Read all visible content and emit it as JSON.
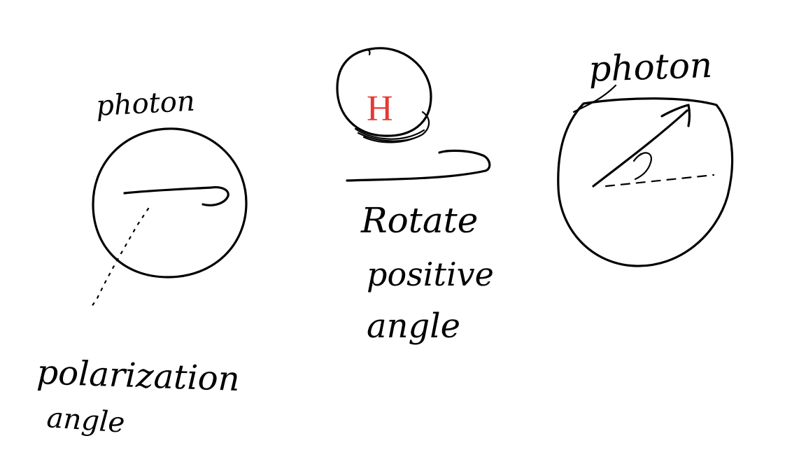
{
  "colors": {
    "ink": "#000000",
    "gate_letter": "#e53935",
    "background": "#ffffff"
  },
  "left": {
    "title": "photon",
    "label_line1": "polarization",
    "label_line2": "angle"
  },
  "middle": {
    "gate_letter": "H",
    "action_line1": "Rotate",
    "action_line2": "positive",
    "action_line3": "angle"
  },
  "right": {
    "title": "photon"
  }
}
